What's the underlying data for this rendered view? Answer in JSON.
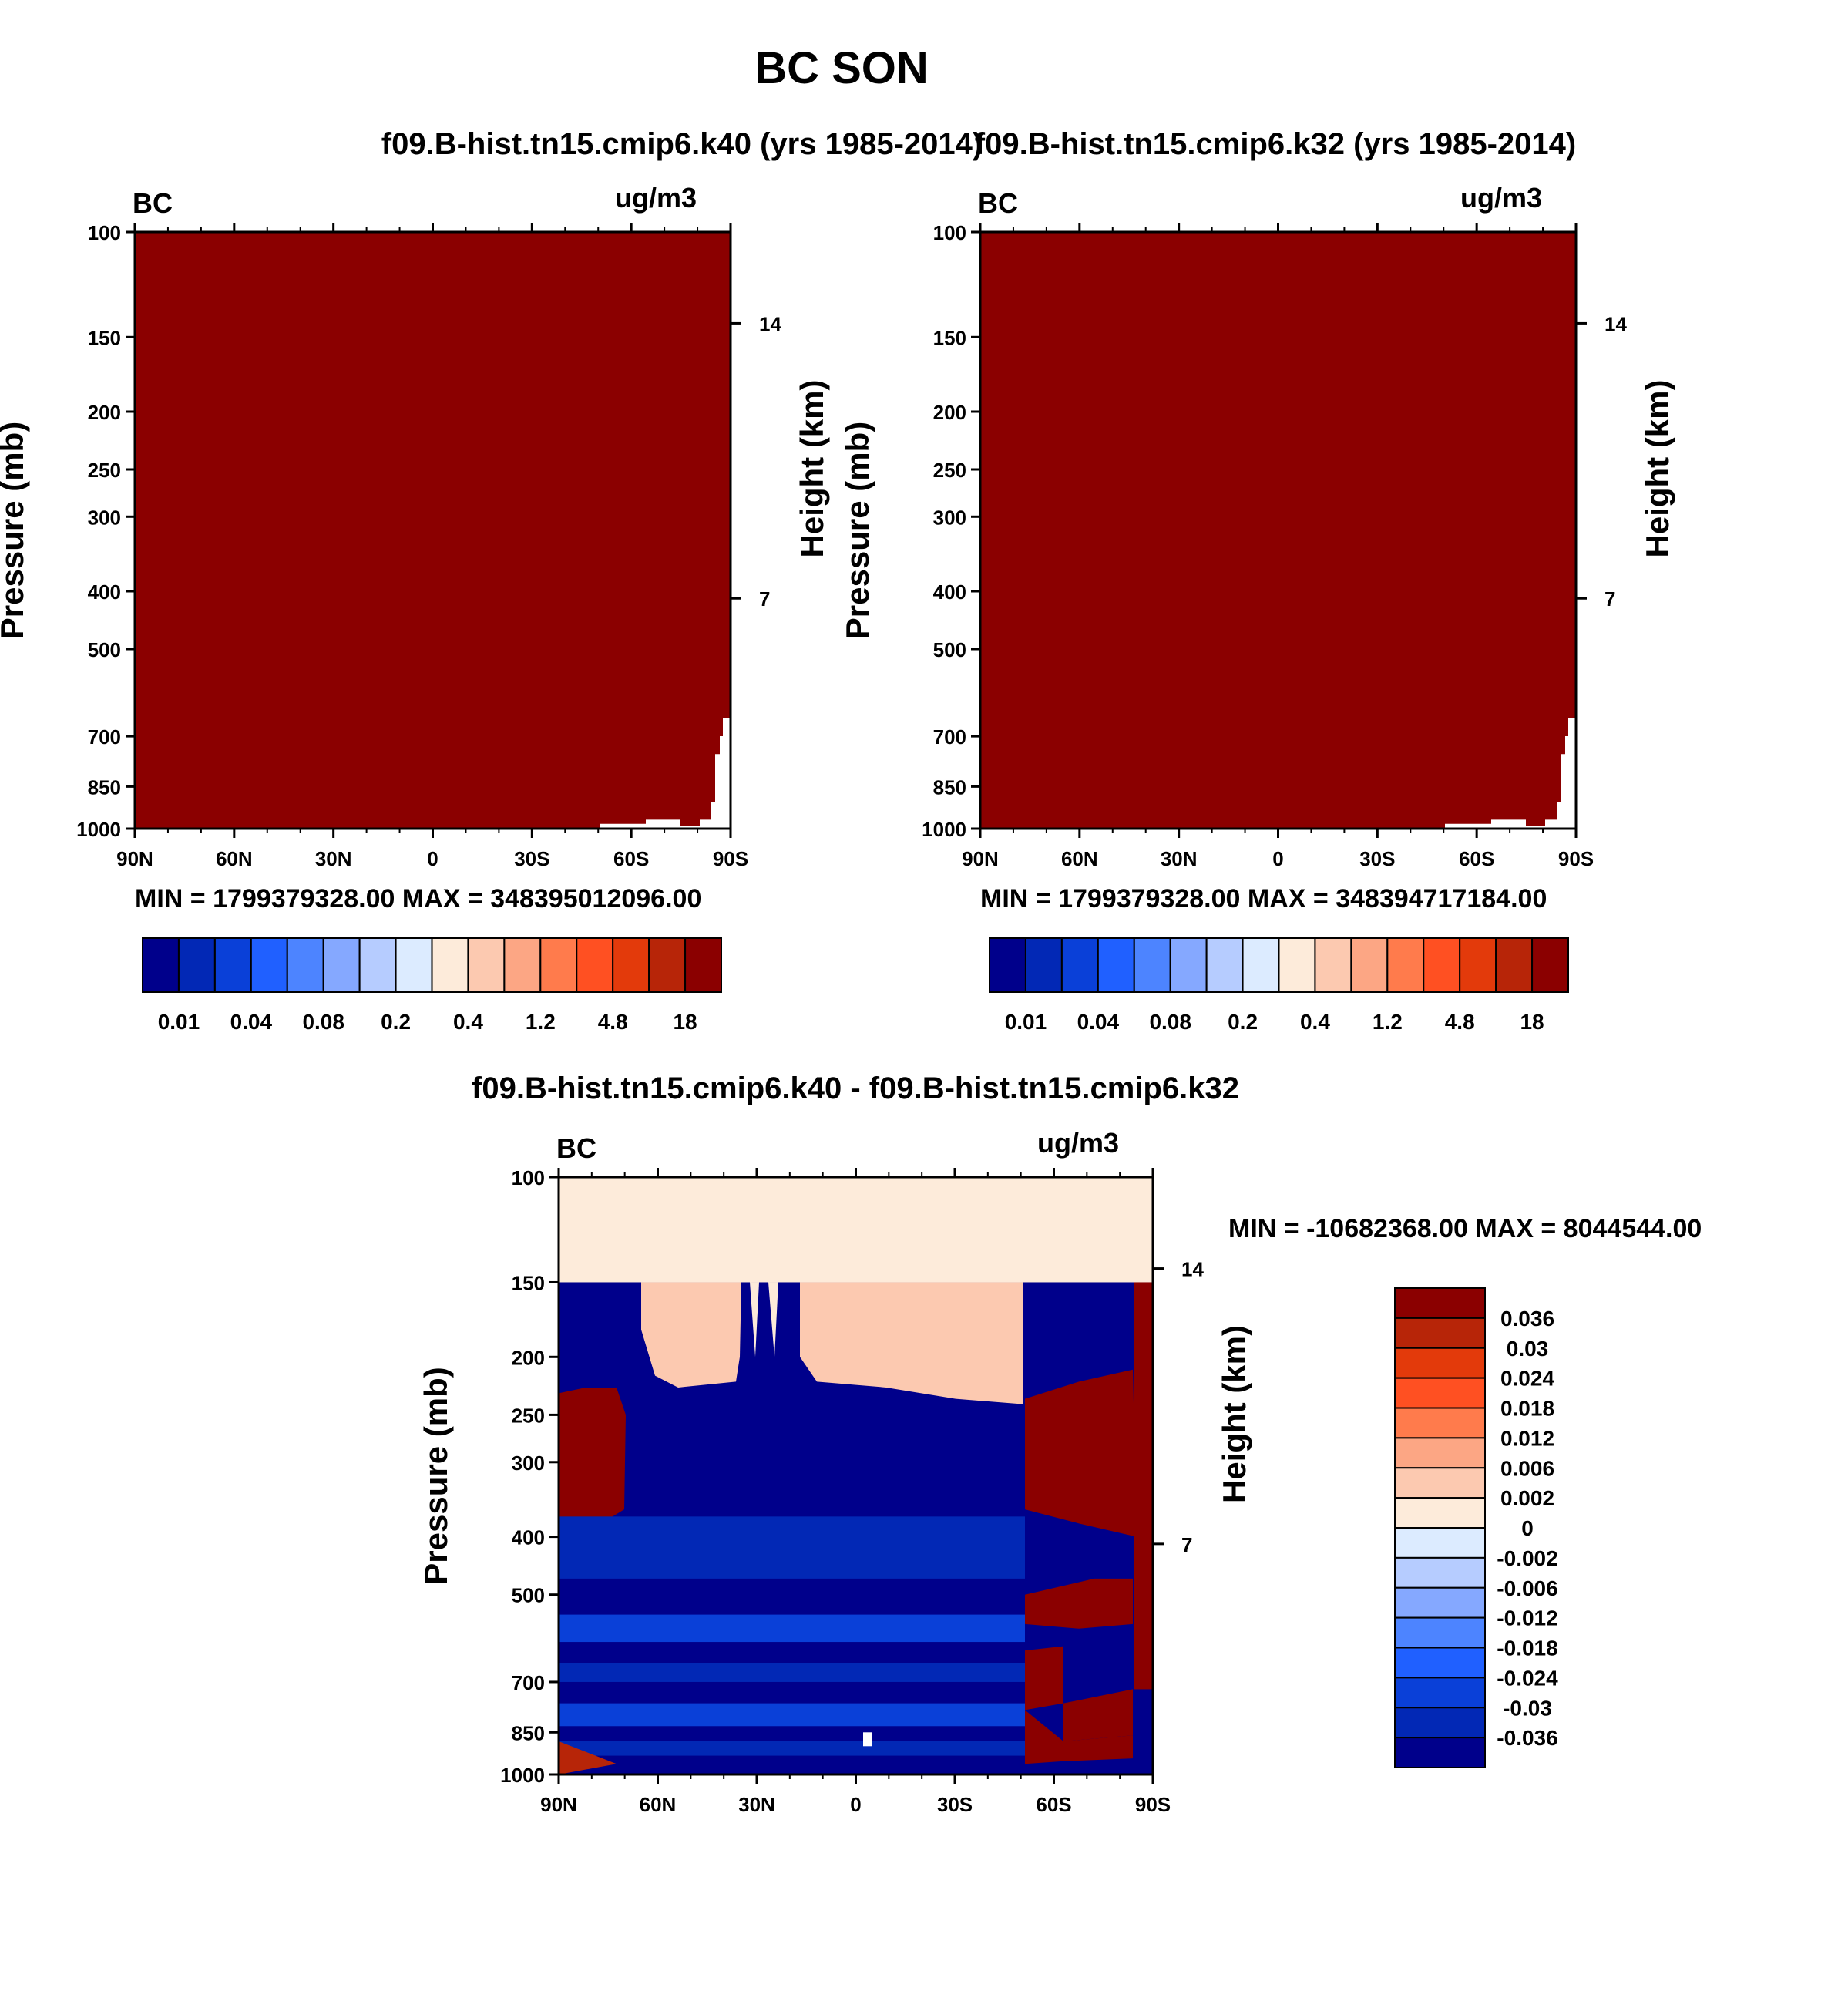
{
  "title": "BC SON",
  "chart_data": [
    {
      "type": "heatmap",
      "title": "f09.B-hist.tn15.cmip6.k40 (yrs 1985-2014)",
      "left_label": "BC",
      "units": "ug/m3",
      "ylabel": "Pressure (mb)",
      "ylabel_right": "Height (km)",
      "x_ticks": [
        "90N",
        "60N",
        "30N",
        "0",
        "30S",
        "60S",
        "90S"
      ],
      "y_ticks": [
        100,
        150,
        200,
        250,
        300,
        400,
        500,
        700,
        850,
        1000
      ],
      "y_ticks_right": [
        14,
        7
      ],
      "y_scale": "log",
      "ylim": [
        100,
        1000
      ],
      "stats": "MIN = 1799379328.00  MAX = 348395012096.00",
      "fill_color": "#8b0000",
      "colorbar": {
        "orientation": "horizontal",
        "labels": [
          "0.01",
          "0.04",
          "0.08",
          "0.2",
          "0.4",
          "1.2",
          "4.8",
          "18"
        ]
      }
    },
    {
      "type": "heatmap",
      "title": "f09.B-hist.tn15.cmip6.k32 (yrs 1985-2014)",
      "left_label": "BC",
      "units": "ug/m3",
      "ylabel": "Pressure (mb)",
      "ylabel_right": "Height (km)",
      "x_ticks": [
        "90N",
        "60N",
        "30N",
        "0",
        "30S",
        "60S",
        "90S"
      ],
      "y_ticks": [
        100,
        150,
        200,
        250,
        300,
        400,
        500,
        700,
        850,
        1000
      ],
      "y_ticks_right": [
        14,
        7
      ],
      "y_scale": "log",
      "ylim": [
        100,
        1000
      ],
      "stats": "MIN = 1799379328.00  MAX = 348394717184.00",
      "fill_color": "#8b0000",
      "colorbar": {
        "orientation": "horizontal",
        "labels": [
          "0.01",
          "0.04",
          "0.08",
          "0.2",
          "0.4",
          "1.2",
          "4.8",
          "18"
        ]
      }
    },
    {
      "type": "heatmap",
      "title": "f09.B-hist.tn15.cmip6.k40 - f09.B-hist.tn15.cmip6.k32",
      "left_label": "BC",
      "units": "ug/m3",
      "ylabel": "Pressure (mb)",
      "ylabel_right": "Height (km)",
      "x_ticks": [
        "90N",
        "60N",
        "30N",
        "0",
        "30S",
        "60S",
        "90S"
      ],
      "y_ticks": [
        100,
        150,
        200,
        250,
        300,
        400,
        500,
        700,
        850,
        1000
      ],
      "y_ticks_right": [
        14,
        7
      ],
      "y_scale": "log",
      "ylim": [
        100,
        1000
      ],
      "stats": "MIN = -10682368.00  MAX = 8044544.00",
      "colorbar": {
        "orientation": "vertical",
        "labels": [
          "0.036",
          "0.03",
          "0.024",
          "0.018",
          "0.012",
          "0.006",
          "0.002",
          "0",
          "-0.002",
          "-0.006",
          "-0.012",
          "-0.018",
          "-0.024",
          "-0.03",
          "-0.036"
        ]
      }
    }
  ],
  "palette": [
    "#00008b",
    "#0228b5",
    "#0a40d8",
    "#2060ff",
    "#4d84ff",
    "#85a8ff",
    "#b6ccff",
    "#dcebff",
    "#fdebda",
    "#fcc9b0",
    "#fca684",
    "#ff7b4c",
    "#ff5022",
    "#e33a0b",
    "#b72508",
    "#8b0000"
  ]
}
